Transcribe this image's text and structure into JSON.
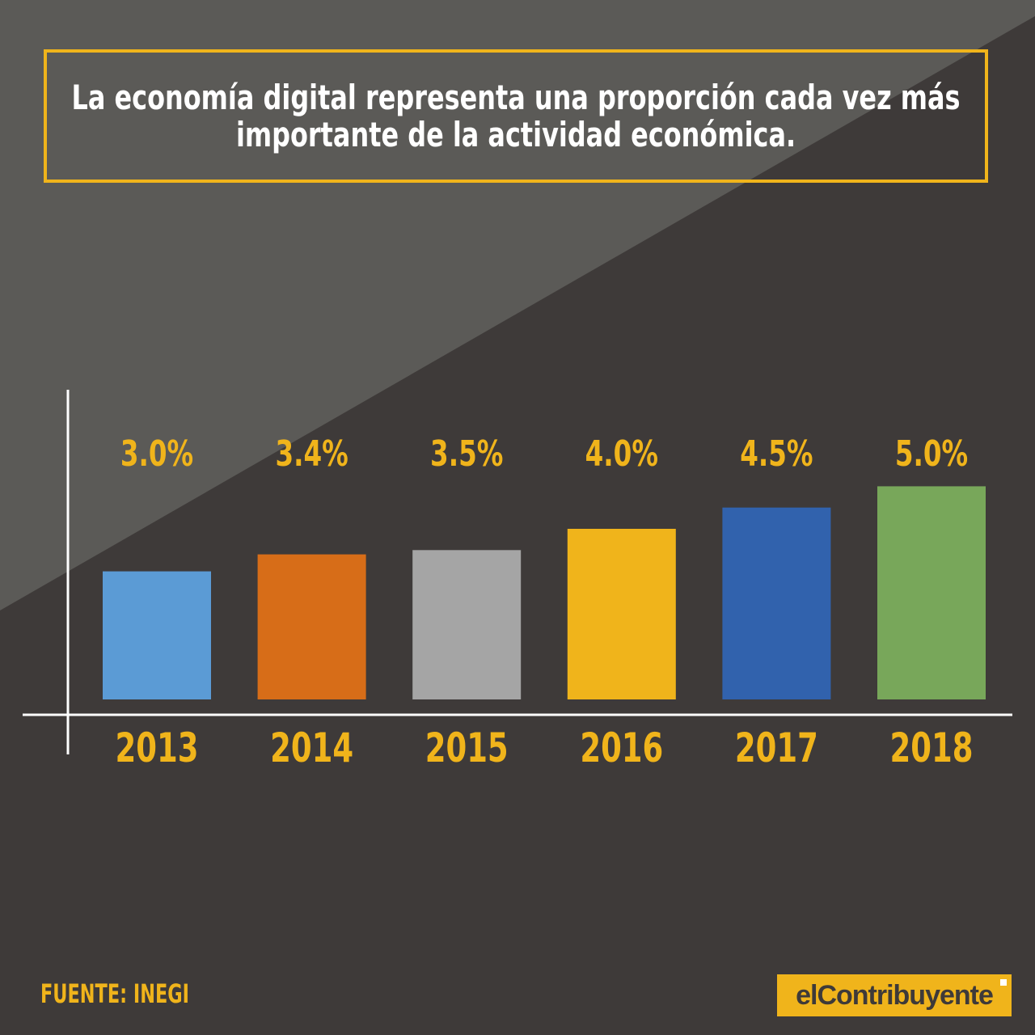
{
  "title": {
    "line1": "La economía digital representa una proporción cada vez más",
    "line2": "importante de la actividad económica."
  },
  "colors": {
    "background": "#3e3a39",
    "background_light": "#5b5a57",
    "accent": "#f0b41b",
    "axis": "#ffffff"
  },
  "chart_data": {
    "type": "bar",
    "title": "La economía digital representa una proporción cada vez más importante de la actividad económica.",
    "categories": [
      "2013",
      "2014",
      "2015",
      "2016",
      "2017",
      "2018"
    ],
    "values": [
      3.0,
      3.4,
      3.5,
      4.0,
      4.5,
      5.0
    ],
    "value_labels": [
      "3.0%",
      "3.4%",
      "3.5%",
      "4.0%",
      "4.5%",
      "5.0%"
    ],
    "bar_colors": [
      "#5b9bd5",
      "#d76d18",
      "#a5a5a5",
      "#f0b41b",
      "#3162ad",
      "#78a75a"
    ],
    "xlabel": "",
    "ylabel": "",
    "unit": "%",
    "grid": false,
    "legend": "none"
  },
  "source": "FUENTE: INEGI",
  "logo": {
    "text": "elContribuyente"
  }
}
